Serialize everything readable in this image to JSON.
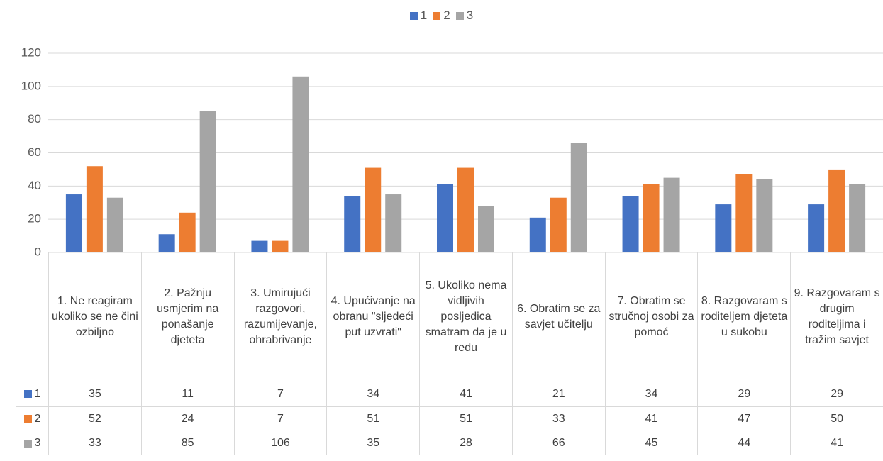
{
  "chart_data": {
    "type": "bar",
    "categories": [
      "1. Ne reagiram ukoliko se ne čini ozbiljno",
      "2. Pažnju usmjerim na ponašanje djeteta",
      "3. Umirujući razgovori, razumijevanje, ohrabrivanje",
      "4. Upućivanje na obranu \"sljedeći put uzvrati\"",
      "5. Ukoliko nema vidljivih posljedica smatram da je u redu",
      "6. Obratim se za savjet učitelju",
      "7. Obratim se stručnoj osobi za pomoć",
      "8. Razgovaram s roditeljem djeteta u sukobu",
      "9. Razgovaram s drugim roditeljima i tražim savjet"
    ],
    "series": [
      {
        "name": "1",
        "color": "#4472c4",
        "values": [
          35,
          11,
          7,
          34,
          41,
          21,
          34,
          29,
          29
        ]
      },
      {
        "name": "2",
        "color": "#ed7d31",
        "values": [
          52,
          24,
          7,
          51,
          51,
          33,
          41,
          47,
          50
        ]
      },
      {
        "name": "3",
        "color": "#a5a5a5",
        "values": [
          33,
          85,
          106,
          35,
          28,
          66,
          45,
          44,
          41
        ]
      }
    ],
    "ylim": [
      0,
      120
    ],
    "yticks": [
      0,
      20,
      40,
      60,
      80,
      100,
      120
    ],
    "grid": true,
    "legend": "top",
    "data_table": true
  }
}
